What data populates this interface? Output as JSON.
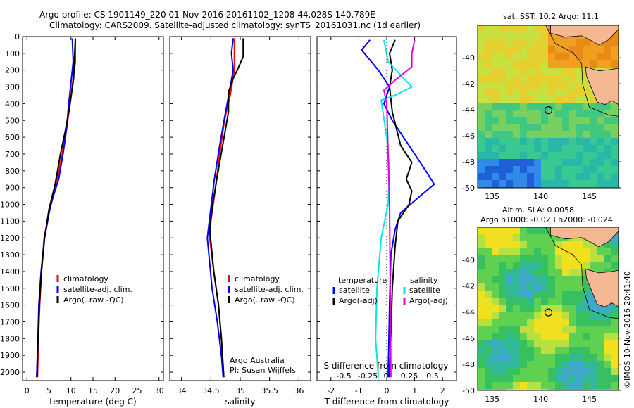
{
  "header": {
    "line1": "Argo profile: CS 1901149_220 01-Nov-2016 20161102_1208 44.028S 140.789E",
    "line2": "Climatology: CARS2009. Satellite-adjusted climatology: synTS_20161031.nc (1d earlier)"
  },
  "colors": {
    "climatology": "#ff0000",
    "satellite": "#0000ff",
    "argo": "#000000",
    "s_satellite": "#00e5ee",
    "s_argo": "#e000e0",
    "land": "#f4b893"
  },
  "chart_data": [
    {
      "type": "line",
      "panel": "temperature",
      "xlabel": "temperature (deg C)",
      "xlim": [
        -1,
        31
      ],
      "xticks": [
        0,
        5,
        10,
        15,
        20,
        25,
        30
      ],
      "ylim": [
        2050,
        0
      ],
      "yticks": [
        0,
        100,
        200,
        300,
        400,
        500,
        600,
        700,
        800,
        900,
        1000,
        1100,
        1200,
        1300,
        1400,
        1500,
        1600,
        1700,
        1800,
        1900,
        2000
      ],
      "legend": [
        "climatology",
        "satellite-adj. clim.",
        "Argo(..raw -QC)"
      ],
      "series": [
        {
          "name": "climatology",
          "color": "#ff0000",
          "points": [
            [
              11,
              10
            ],
            [
              11,
              150
            ],
            [
              10.5,
              250
            ],
            [
              9.8,
              400
            ],
            [
              9,
              550
            ],
            [
              8,
              700
            ],
            [
              6.5,
              900
            ],
            [
              5,
              1050
            ],
            [
              3.9,
              1200
            ],
            [
              3.3,
              1400
            ],
            [
              2.9,
              1600
            ],
            [
              2.6,
              1800
            ],
            [
              2.4,
              2030
            ]
          ]
        },
        {
          "name": "satellite-adj. clim.",
          "color": "#0000ff",
          "points": [
            [
              10.3,
              10
            ],
            [
              10.5,
              150
            ],
            [
              10.1,
              250
            ],
            [
              9.5,
              400
            ],
            [
              9,
              550
            ],
            [
              8.2,
              700
            ],
            [
              7.2,
              850
            ],
            [
              5.4,
              1000
            ],
            [
              4,
              1200
            ],
            [
              3.2,
              1400
            ],
            [
              2.7,
              1600
            ],
            [
              2.5,
              1800
            ],
            [
              2.2,
              2030
            ]
          ]
        },
        {
          "name": "Argo(..raw -QC)",
          "color": "#000000",
          "points": [
            [
              11,
              10
            ],
            [
              10.8,
              120
            ],
            [
              10.6,
              250
            ],
            [
              9.8,
              400
            ],
            [
              8.8,
              550
            ],
            [
              7.6,
              700
            ],
            [
              6.4,
              880
            ],
            [
              5,
              1030
            ],
            [
              4,
              1200
            ],
            [
              3.3,
              1400
            ],
            [
              2.8,
              1600
            ],
            [
              2.5,
              1800
            ],
            [
              2.3,
              2030
            ]
          ]
        }
      ]
    },
    {
      "type": "line",
      "panel": "salinity",
      "xlabel": "salinity",
      "xlim": [
        33.8,
        36.2
      ],
      "xticks": [
        34,
        34.5,
        35,
        35.5,
        36
      ],
      "ylim": [
        2050,
        0
      ],
      "legend": [
        "climatology",
        "satellite-adj. clim.",
        "Argo(..raw -QC)"
      ],
      "annotation": [
        "Argo Australia",
        "PI: Susan Wijffels"
      ],
      "series": [
        {
          "name": "climatology",
          "color": "#ff0000",
          "points": [
            [
              34.9,
              10
            ],
            [
              34.9,
              200
            ],
            [
              34.83,
              350
            ],
            [
              34.73,
              500
            ],
            [
              34.65,
              700
            ],
            [
              34.58,
              900
            ],
            [
              34.5,
              1100
            ],
            [
              34.48,
              1200
            ],
            [
              34.55,
              1400
            ],
            [
              34.63,
              1600
            ],
            [
              34.68,
              1800
            ],
            [
              34.72,
              2030
            ]
          ]
        },
        {
          "name": "satellite-adj. clim.",
          "color": "#0000ff",
          "points": [
            [
              34.88,
              10
            ],
            [
              34.85,
              100
            ],
            [
              34.88,
              200
            ],
            [
              34.83,
              300
            ],
            [
              34.75,
              450
            ],
            [
              34.65,
              650
            ],
            [
              34.56,
              850
            ],
            [
              34.49,
              1050
            ],
            [
              34.44,
              1200
            ],
            [
              34.52,
              1500
            ],
            [
              34.61,
              1700
            ],
            [
              34.68,
              1900
            ],
            [
              34.71,
              2030
            ]
          ]
        },
        {
          "name": "Argo(..raw -QC)",
          "color": "#000000",
          "points": [
            [
              35.05,
              10
            ],
            [
              35.05,
              120
            ],
            [
              34.95,
              200
            ],
            [
              34.88,
              250
            ],
            [
              34.8,
              330
            ],
            [
              34.8,
              450
            ],
            [
              34.7,
              650
            ],
            [
              34.6,
              850
            ],
            [
              34.53,
              1000
            ],
            [
              34.48,
              1150
            ],
            [
              34.55,
              1400
            ],
            [
              34.63,
              1600
            ],
            [
              34.68,
              1800
            ],
            [
              34.72,
              2030
            ]
          ]
        }
      ]
    },
    {
      "type": "line",
      "panel": "difference",
      "xlabel": "T difference from climatology",
      "xlim": [
        -2.5,
        2.5
      ],
      "xticks": [
        -2,
        -1,
        0,
        1,
        2
      ],
      "secondary_xlabel": "S difference from climatology",
      "secondary_xticks": [
        "-0.5",
        "-0.25",
        "0",
        "0.25",
        "0.5"
      ],
      "ylim": [
        2050,
        0
      ],
      "legend_temperature": [
        "temperature",
        "satellite",
        "Argo(-adj)"
      ],
      "legend_salinity": [
        "salinity",
        "satellite",
        "Argo(-adj)"
      ],
      "series": [
        {
          "name": "T satellite",
          "color": "#0000ff",
          "points": [
            [
              -0.6,
              20
            ],
            [
              -0.9,
              80
            ],
            [
              -0.3,
              200
            ],
            [
              0.1,
              300
            ],
            [
              -0.1,
              400
            ],
            [
              0.2,
              500
            ],
            [
              0.6,
              600
            ],
            [
              1,
              700
            ],
            [
              1.4,
              800
            ],
            [
              1.7,
              880
            ],
            [
              1.2,
              950
            ],
            [
              0.5,
              1050
            ],
            [
              0.3,
              1150
            ],
            [
              0.15,
              1300
            ],
            [
              0.1,
              1600
            ],
            [
              0.05,
              2030
            ]
          ]
        },
        {
          "name": "T Argo(-adj)",
          "color": "#000000",
          "points": [
            [
              0.3,
              20
            ],
            [
              0.1,
              100
            ],
            [
              0.2,
              200
            ],
            [
              0.1,
              300
            ],
            [
              0.2,
              450
            ],
            [
              0.5,
              650
            ],
            [
              0.9,
              750
            ],
            [
              0.7,
              850
            ],
            [
              0.9,
              920
            ],
            [
              0.8,
              1000
            ],
            [
              0.4,
              1100
            ],
            [
              0.3,
              1250
            ],
            [
              0.2,
              1500
            ],
            [
              0.1,
              2030
            ]
          ]
        },
        {
          "name": "S satellite",
          "color": "#00e5ee",
          "points": [
            [
              -0.1,
              20
            ],
            [
              0.05,
              150
            ],
            [
              0.9,
              300
            ],
            [
              0.3,
              350
            ],
            [
              -0.2,
              380
            ],
            [
              0,
              600
            ],
            [
              0.1,
              800
            ],
            [
              0.05,
              1000
            ],
            [
              -0.2,
              1200
            ],
            [
              -0.35,
              1500
            ],
            [
              -0.4,
              1800
            ],
            [
              -0.3,
              2030
            ]
          ]
        },
        {
          "name": "S Argo(-adj)",
          "color": "#e000e0",
          "points": [
            [
              1,
              20
            ],
            [
              0.9,
              100
            ],
            [
              0.9,
              180
            ],
            [
              0.3,
              260
            ],
            [
              -0.1,
              320
            ],
            [
              0,
              400
            ],
            [
              0.1,
              1000
            ],
            [
              0.15,
              2030
            ]
          ]
        }
      ]
    },
    {
      "type": "heatmap",
      "panel": "map_sst",
      "title": "sat. SST: 10.2  Argo: 11.1",
      "xlim": [
        133.5,
        148
      ],
      "xticks": [
        135,
        140,
        145
      ],
      "ylim": [
        -50,
        -37.5
      ],
      "yticks": [
        -40,
        -42,
        -44,
        -46,
        -48,
        -50
      ],
      "marker": [
        140.789,
        -44.028
      ]
    },
    {
      "type": "heatmap",
      "panel": "map_sla",
      "title": "Altim. SLA: 0.0058",
      "subtitle": "Argo h1000: -0.023  h2000: -0.024",
      "xlim": [
        133.5,
        148
      ],
      "xticks": [
        135,
        140,
        145
      ],
      "ylim": [
        -50,
        -37.5
      ],
      "yticks": [
        -40,
        -42,
        -44,
        -46,
        -48,
        -50
      ],
      "marker": [
        140.789,
        -44.028
      ]
    }
  ],
  "credit": "©IMOS 10-Nov-2016 20:41:40"
}
